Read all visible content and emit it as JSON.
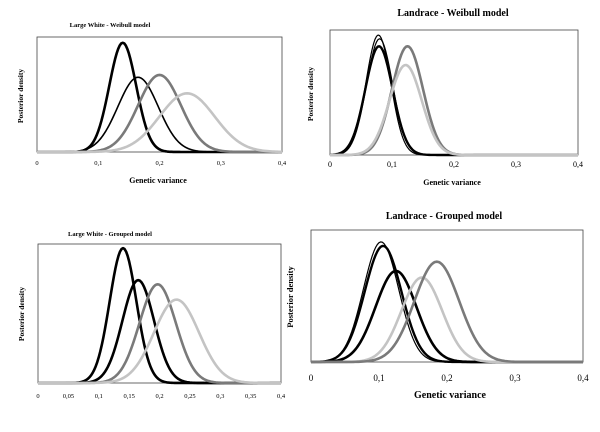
{
  "colors": {
    "black": "#000000",
    "dark_gray": "#7a7a7a",
    "light_gray": "#c4c4c4"
  },
  "chart_data": [
    {
      "type": "line",
      "title": "Large White - Weibull model",
      "xlabel": "Genetic variance",
      "ylabel": "Posterior density",
      "x_ticks": [
        "0",
        "0,1",
        "0,2",
        "0,3",
        "0,4"
      ],
      "xlim": [
        0,
        0.4
      ],
      "grid": false,
      "series": [
        {
          "mode": 0.14,
          "sd": 0.022,
          "peak": 0.95,
          "color": "black",
          "width": 2.6
        },
        {
          "mode": 0.165,
          "sd": 0.033,
          "peak": 0.65,
          "color": "black",
          "width": 1.6
        },
        {
          "mode": 0.2,
          "sd": 0.035,
          "peak": 0.67,
          "color": "dark_gray",
          "width": 2.6
        },
        {
          "mode": 0.245,
          "sd": 0.045,
          "peak": 0.51,
          "color": "light_gray",
          "width": 2.6
        }
      ]
    },
    {
      "type": "line",
      "title": "Landrace - Weibull model",
      "xlabel": "Genetic variance",
      "ylabel": "Posterior density",
      "x_ticks": [
        "0",
        "0,1",
        "0,2",
        "0,3",
        "0,4"
      ],
      "xlim": [
        0,
        0.4
      ],
      "grid": false,
      "series": [
        {
          "mode": 0.078,
          "sd": 0.02,
          "peak": 0.96,
          "color": "black",
          "width": 1.2
        },
        {
          "mode": 0.08,
          "sd": 0.021,
          "peak": 0.93,
          "color": "black",
          "width": 1.2
        },
        {
          "mode": 0.079,
          "sd": 0.022,
          "peak": 0.87,
          "color": "black",
          "width": 2.4
        },
        {
          "mode": 0.125,
          "sd": 0.025,
          "peak": 0.87,
          "color": "dark_gray",
          "width": 2.6
        },
        {
          "mode": 0.122,
          "sd": 0.026,
          "peak": 0.72,
          "color": "light_gray",
          "width": 2.6
        }
      ]
    },
    {
      "type": "line",
      "title": "Large White - Grouped model",
      "xlabel": "Genetic variance",
      "ylabel": "Posterior density",
      "x_ticks": [
        "0",
        "0,05",
        "0,1",
        "0,15",
        "0,2",
        "0,25",
        "0,3",
        "0,35",
        "0,4"
      ],
      "xlim": [
        0,
        0.4
      ],
      "grid": false,
      "series": [
        {
          "mode": 0.14,
          "sd": 0.022,
          "peak": 0.97,
          "color": "black",
          "width": 2.6
        },
        {
          "mode": 0.165,
          "sd": 0.026,
          "peak": 0.74,
          "color": "black",
          "width": 2.6
        },
        {
          "mode": 0.197,
          "sd": 0.03,
          "peak": 0.71,
          "color": "dark_gray",
          "width": 2.6
        },
        {
          "mode": 0.228,
          "sd": 0.037,
          "peak": 0.6,
          "color": "light_gray",
          "width": 2.6
        }
      ]
    },
    {
      "type": "line",
      "title": "Landrace - Grouped model",
      "xlabel": "Genetic variance",
      "ylabel": "Posterior  density",
      "x_ticks": [
        "0",
        "0,1",
        "0,2",
        "0,3",
        "0,4"
      ],
      "xlim": [
        0,
        0.4
      ],
      "grid": false,
      "series": [
        {
          "mode": 0.103,
          "sd": 0.026,
          "peak": 0.91,
          "color": "black",
          "width": 1.2
        },
        {
          "mode": 0.106,
          "sd": 0.027,
          "peak": 0.88,
          "color": "black",
          "width": 2.4
        },
        {
          "mode": 0.125,
          "sd": 0.03,
          "peak": 0.69,
          "color": "black",
          "width": 2.6
        },
        {
          "mode": 0.163,
          "sd": 0.03,
          "peak": 0.64,
          "color": "light_gray",
          "width": 2.6
        },
        {
          "mode": 0.185,
          "sd": 0.033,
          "peak": 0.76,
          "color": "dark_gray",
          "width": 2.6
        }
      ]
    }
  ]
}
